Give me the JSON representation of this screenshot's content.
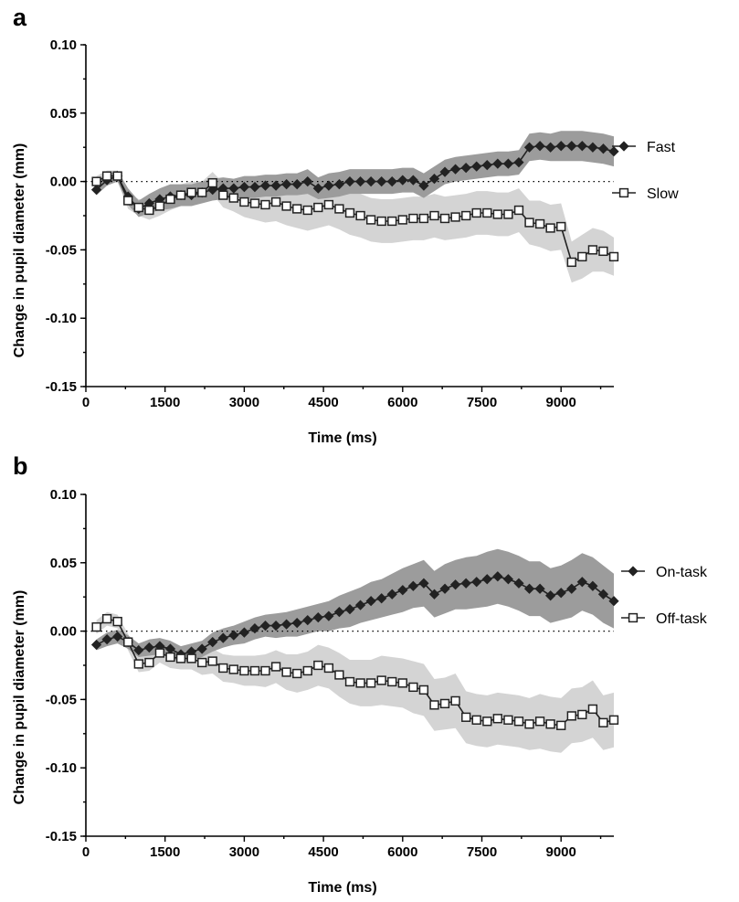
{
  "chart_data": [
    {
      "panel_label": "a",
      "type": "line",
      "xlabel": "Time (ms)",
      "ylabel": "Change in pupil diameter (mm)",
      "xlim": [
        0,
        10000
      ],
      "ylim": [
        -0.15,
        0.1
      ],
      "xticks": [
        "0",
        "1500",
        "3000",
        "4500",
        "6000",
        "7500",
        "9000"
      ],
      "yticks": [
        "-0.15",
        "-0.10",
        "-0.05",
        "0.00",
        "0.05",
        "0.10"
      ],
      "reference_line": 0,
      "legend_position": "right",
      "x": [
        200,
        400,
        600,
        800,
        1000,
        1200,
        1400,
        1600,
        1800,
        2000,
        2200,
        2400,
        2600,
        2800,
        3000,
        3200,
        3400,
        3600,
        3800,
        4000,
        4200,
        4400,
        4600,
        4800,
        5000,
        5200,
        5400,
        5600,
        5800,
        6000,
        6200,
        6400,
        6600,
        6800,
        7000,
        7200,
        7400,
        7600,
        7800,
        8000,
        8200,
        8400,
        8600,
        8800,
        9000,
        9200,
        9400,
        9600,
        9800,
        10000
      ],
      "series": [
        {
          "name": "Fast",
          "marker": "diamond",
          "color": "#222222",
          "band_color": "#9c9c9c",
          "values": [
            -0.006,
            0.001,
            0.004,
            -0.011,
            -0.02,
            -0.016,
            -0.013,
            -0.011,
            -0.01,
            -0.01,
            -0.008,
            -0.006,
            -0.005,
            -0.005,
            -0.004,
            -0.004,
            -0.003,
            -0.003,
            -0.002,
            -0.002,
            0.0,
            -0.005,
            -0.003,
            -0.002,
            0.0,
            0.0,
            0.0,
            0.0,
            0.0,
            0.001,
            0.001,
            -0.003,
            0.002,
            0.007,
            0.009,
            0.01,
            0.011,
            0.012,
            0.013,
            0.013,
            0.014,
            0.025,
            0.026,
            0.025,
            0.026,
            0.026,
            0.026,
            0.025,
            0.024,
            0.022
          ],
          "lower": [
            -0.01,
            -0.003,
            0.0,
            -0.017,
            -0.026,
            -0.023,
            -0.021,
            -0.02,
            -0.018,
            -0.018,
            -0.016,
            -0.014,
            -0.013,
            -0.012,
            -0.012,
            -0.012,
            -0.011,
            -0.011,
            -0.01,
            -0.01,
            -0.009,
            -0.013,
            -0.012,
            -0.011,
            -0.009,
            -0.009,
            -0.009,
            -0.009,
            -0.009,
            -0.008,
            -0.008,
            -0.012,
            -0.007,
            -0.002,
            0.0,
            0.001,
            0.002,
            0.003,
            0.004,
            0.004,
            0.005,
            0.015,
            0.016,
            0.015,
            0.015,
            0.015,
            0.015,
            0.014,
            0.013,
            0.011
          ],
          "upper": [
            -0.002,
            0.005,
            0.008,
            -0.005,
            -0.014,
            -0.009,
            -0.005,
            -0.002,
            -0.002,
            -0.002,
            0.0,
            0.002,
            0.003,
            0.002,
            0.004,
            0.004,
            0.005,
            0.005,
            0.006,
            0.006,
            0.009,
            0.003,
            0.006,
            0.007,
            0.009,
            0.009,
            0.009,
            0.009,
            0.009,
            0.01,
            0.01,
            0.006,
            0.011,
            0.016,
            0.018,
            0.019,
            0.02,
            0.021,
            0.022,
            0.022,
            0.023,
            0.035,
            0.036,
            0.035,
            0.037,
            0.037,
            0.037,
            0.036,
            0.035,
            0.033
          ]
        },
        {
          "name": "Slow",
          "marker": "square",
          "color": "#222222",
          "band_color": "#d4d4d4",
          "values": [
            0.0,
            0.004,
            0.004,
            -0.014,
            -0.019,
            -0.021,
            -0.018,
            -0.013,
            -0.01,
            -0.008,
            -0.008,
            -0.001,
            -0.01,
            -0.012,
            -0.015,
            -0.016,
            -0.017,
            -0.015,
            -0.018,
            -0.02,
            -0.021,
            -0.019,
            -0.017,
            -0.02,
            -0.023,
            -0.025,
            -0.028,
            -0.029,
            -0.029,
            -0.028,
            -0.027,
            -0.027,
            -0.025,
            -0.027,
            -0.026,
            -0.025,
            -0.023,
            -0.023,
            -0.024,
            -0.024,
            -0.021,
            -0.03,
            -0.031,
            -0.034,
            -0.033,
            -0.059,
            -0.055,
            -0.05,
            -0.051,
            -0.055
          ],
          "lower": [
            -0.004,
            0.0,
            0.0,
            -0.02,
            -0.025,
            -0.028,
            -0.025,
            -0.021,
            -0.018,
            -0.016,
            -0.016,
            -0.009,
            -0.019,
            -0.022,
            -0.026,
            -0.028,
            -0.03,
            -0.029,
            -0.032,
            -0.034,
            -0.036,
            -0.034,
            -0.032,
            -0.035,
            -0.039,
            -0.041,
            -0.044,
            -0.045,
            -0.045,
            -0.044,
            -0.043,
            -0.043,
            -0.041,
            -0.043,
            -0.042,
            -0.041,
            -0.039,
            -0.039,
            -0.04,
            -0.04,
            -0.037,
            -0.046,
            -0.048,
            -0.051,
            -0.05,
            -0.074,
            -0.071,
            -0.066,
            -0.066,
            -0.069
          ],
          "upper": [
            0.004,
            0.008,
            0.008,
            -0.008,
            -0.013,
            -0.014,
            -0.011,
            -0.005,
            -0.002,
            0.0,
            0.0,
            0.007,
            -0.001,
            -0.002,
            -0.004,
            -0.004,
            -0.004,
            -0.001,
            -0.004,
            -0.006,
            -0.006,
            -0.004,
            -0.002,
            -0.005,
            -0.007,
            -0.009,
            -0.012,
            -0.013,
            -0.013,
            -0.012,
            -0.011,
            -0.011,
            -0.009,
            -0.011,
            -0.01,
            -0.009,
            -0.007,
            -0.007,
            -0.008,
            -0.008,
            -0.005,
            -0.014,
            -0.014,
            -0.017,
            -0.016,
            -0.044,
            -0.039,
            -0.034,
            -0.036,
            -0.041
          ]
        }
      ]
    },
    {
      "panel_label": "b",
      "type": "line",
      "xlabel": "Time (ms)",
      "ylabel": "Change in pupil diameter (mm)",
      "xlim": [
        0,
        10000
      ],
      "ylim": [
        -0.15,
        0.1
      ],
      "xticks": [
        "0",
        "1500",
        "3000",
        "4500",
        "6000",
        "7500",
        "9000"
      ],
      "yticks": [
        "-0.15",
        "-0.10",
        "-0.05",
        "0.00",
        "0.05",
        "0.10"
      ],
      "reference_line": 0,
      "legend_position": "right",
      "x": [
        200,
        400,
        600,
        800,
        1000,
        1200,
        1400,
        1600,
        1800,
        2000,
        2200,
        2400,
        2600,
        2800,
        3000,
        3200,
        3400,
        3600,
        3800,
        4000,
        4200,
        4400,
        4600,
        4800,
        5000,
        5200,
        5400,
        5600,
        5800,
        6000,
        6200,
        6400,
        6600,
        6800,
        7000,
        7200,
        7400,
        7600,
        7800,
        8000,
        8200,
        8400,
        8600,
        8800,
        9000,
        9200,
        9400,
        9600,
        9800,
        10000
      ],
      "series": [
        {
          "name": "On-task",
          "marker": "diamond",
          "color": "#222222",
          "band_color": "#9c9c9c",
          "values": [
            -0.01,
            -0.006,
            -0.004,
            -0.008,
            -0.014,
            -0.012,
            -0.011,
            -0.013,
            -0.017,
            -0.015,
            -0.013,
            -0.008,
            -0.005,
            -0.003,
            -0.001,
            0.002,
            0.004,
            0.004,
            0.005,
            0.006,
            0.008,
            0.01,
            0.011,
            0.014,
            0.016,
            0.019,
            0.022,
            0.024,
            0.027,
            0.03,
            0.033,
            0.035,
            0.027,
            0.031,
            0.034,
            0.035,
            0.036,
            0.038,
            0.04,
            0.038,
            0.035,
            0.031,
            0.031,
            0.026,
            0.028,
            0.031,
            0.036,
            0.033,
            0.027,
            0.022
          ],
          "lower": [
            -0.014,
            -0.011,
            -0.009,
            -0.013,
            -0.019,
            -0.018,
            -0.017,
            -0.019,
            -0.023,
            -0.021,
            -0.019,
            -0.015,
            -0.012,
            -0.01,
            -0.009,
            -0.006,
            -0.004,
            -0.005,
            -0.004,
            -0.004,
            -0.002,
            0.0,
            0.0,
            0.002,
            0.003,
            0.006,
            0.008,
            0.01,
            0.012,
            0.014,
            0.017,
            0.018,
            0.01,
            0.013,
            0.016,
            0.016,
            0.017,
            0.018,
            0.02,
            0.018,
            0.015,
            0.011,
            0.011,
            0.006,
            0.008,
            0.01,
            0.015,
            0.012,
            0.006,
            0.002
          ],
          "upper": [
            -0.006,
            -0.001,
            0.001,
            -0.003,
            -0.009,
            -0.006,
            -0.005,
            -0.007,
            -0.011,
            -0.009,
            -0.007,
            -0.001,
            0.002,
            0.004,
            0.007,
            0.01,
            0.012,
            0.013,
            0.014,
            0.016,
            0.018,
            0.02,
            0.022,
            0.026,
            0.029,
            0.032,
            0.036,
            0.038,
            0.042,
            0.046,
            0.049,
            0.052,
            0.044,
            0.049,
            0.052,
            0.054,
            0.055,
            0.058,
            0.06,
            0.058,
            0.055,
            0.051,
            0.051,
            0.046,
            0.048,
            0.052,
            0.057,
            0.054,
            0.048,
            0.042
          ]
        },
        {
          "name": "Off-task",
          "marker": "square",
          "color": "#222222",
          "band_color": "#d4d4d4",
          "values": [
            0.003,
            0.009,
            0.007,
            -0.008,
            -0.024,
            -0.023,
            -0.016,
            -0.019,
            -0.02,
            -0.02,
            -0.023,
            -0.022,
            -0.027,
            -0.028,
            -0.029,
            -0.029,
            -0.029,
            -0.026,
            -0.03,
            -0.031,
            -0.029,
            -0.025,
            -0.027,
            -0.032,
            -0.037,
            -0.038,
            -0.038,
            -0.036,
            -0.037,
            -0.038,
            -0.041,
            -0.043,
            -0.054,
            -0.053,
            -0.051,
            -0.063,
            -0.065,
            -0.066,
            -0.064,
            -0.065,
            -0.066,
            -0.068,
            -0.066,
            -0.068,
            -0.069,
            -0.062,
            -0.061,
            -0.057,
            -0.067,
            -0.065
          ],
          "lower": [
            -0.002,
            0.004,
            0.002,
            -0.014,
            -0.03,
            -0.029,
            -0.023,
            -0.027,
            -0.028,
            -0.028,
            -0.032,
            -0.031,
            -0.037,
            -0.038,
            -0.04,
            -0.04,
            -0.041,
            -0.038,
            -0.043,
            -0.045,
            -0.043,
            -0.04,
            -0.042,
            -0.048,
            -0.053,
            -0.055,
            -0.055,
            -0.054,
            -0.055,
            -0.056,
            -0.06,
            -0.062,
            -0.073,
            -0.072,
            -0.071,
            -0.082,
            -0.084,
            -0.085,
            -0.083,
            -0.084,
            -0.085,
            -0.087,
            -0.086,
            -0.088,
            -0.089,
            -0.082,
            -0.081,
            -0.078,
            -0.087,
            -0.085
          ],
          "upper": [
            0.008,
            0.014,
            0.012,
            -0.002,
            -0.018,
            -0.017,
            -0.009,
            -0.011,
            -0.012,
            -0.012,
            -0.014,
            -0.013,
            -0.017,
            -0.018,
            -0.018,
            -0.018,
            -0.017,
            -0.014,
            -0.017,
            -0.017,
            -0.015,
            -0.01,
            -0.012,
            -0.016,
            -0.021,
            -0.021,
            -0.021,
            -0.018,
            -0.019,
            -0.02,
            -0.022,
            -0.024,
            -0.035,
            -0.034,
            -0.031,
            -0.044,
            -0.046,
            -0.047,
            -0.045,
            -0.046,
            -0.047,
            -0.049,
            -0.046,
            -0.048,
            -0.049,
            -0.042,
            -0.041,
            -0.036,
            -0.047,
            -0.045
          ]
        }
      ]
    }
  ]
}
